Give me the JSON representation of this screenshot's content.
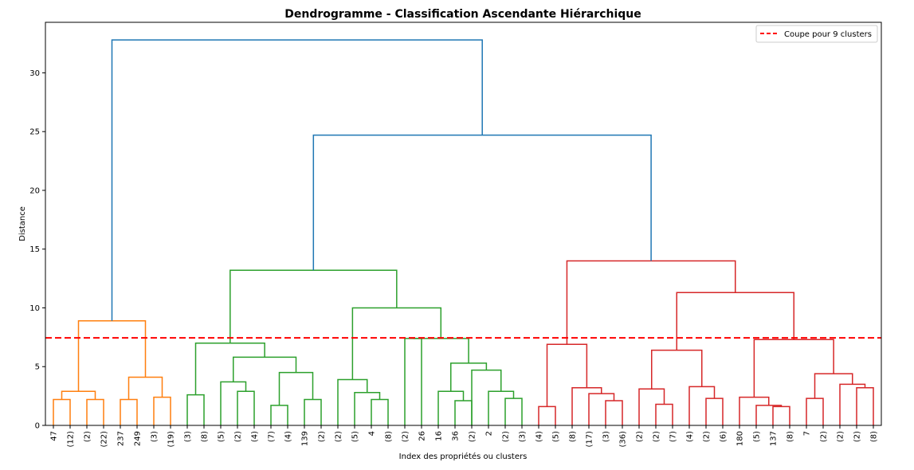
{
  "chart_data": {
    "type": "dendrogram",
    "title": "Dendrogramme - Classification Ascendante Hiérarchique",
    "xlabel": "Index des propriétés ou clusters",
    "ylabel": "Distance",
    "ylim": [
      0,
      34.3
    ],
    "yticks": [
      0,
      5,
      10,
      15,
      20,
      25,
      30
    ],
    "grid": false,
    "legend": {
      "placement": "top-right",
      "entries": [
        {
          "label": "Coupe pour 9 clusters",
          "color": "#ff0000",
          "style": "dashed"
        }
      ]
    },
    "cut_line": {
      "y": 7.45,
      "label": "Coupe pour 9 clusters",
      "color": "#ff0000"
    },
    "leaf_labels": [
      "47",
      "(12)",
      "(2)",
      "(22)",
      "237",
      "249",
      "(3)",
      "(19)",
      "(3)",
      "(8)",
      "(5)",
      "(2)",
      "(4)",
      "(7)",
      "(4)",
      "139",
      "(2)",
      "(2)",
      "(5)",
      "4",
      "(8)",
      "(2)",
      "26",
      "16",
      "36",
      "(2)",
      "2",
      "(2)",
      "(3)",
      "(4)",
      "(5)",
      "(8)",
      "(17)",
      "(3)",
      "(36)",
      "(2)",
      "(2)",
      "(7)",
      "(4)",
      "(2)",
      "(6)",
      "180",
      "(5)",
      "137",
      "(8)",
      "7",
      "(2)",
      "(2)",
      "(2)",
      "(8)"
    ],
    "cluster_colors": {
      "orange": "#ff7f0e",
      "green": "#2ca02c",
      "red": "#d62728",
      "blue": "#1f77b4"
    },
    "merges": [
      {
        "a": {
          "leaf": 0
        },
        "b": {
          "leaf": 1
        },
        "h": 2.2,
        "c": "orange"
      },
      {
        "a": {
          "leaf": 2
        },
        "b": {
          "leaf": 3
        },
        "h": 2.2,
        "c": "orange"
      },
      {
        "a": {
          "node": 0
        },
        "b": {
          "node": 1
        },
        "h": 2.9,
        "c": "orange"
      },
      {
        "a": {
          "leaf": 4
        },
        "b": {
          "leaf": 5
        },
        "h": 2.2,
        "c": "orange"
      },
      {
        "a": {
          "leaf": 6
        },
        "b": {
          "leaf": 7
        },
        "h": 2.4,
        "c": "orange"
      },
      {
        "a": {
          "node": 3
        },
        "b": {
          "node": 4
        },
        "h": 4.1,
        "c": "orange"
      },
      {
        "a": {
          "node": 2
        },
        "b": {
          "node": 5
        },
        "h": 8.9,
        "c": "orange"
      },
      {
        "a": {
          "leaf": 8
        },
        "b": {
          "leaf": 9
        },
        "h": 2.6,
        "c": "green"
      },
      {
        "a": {
          "leaf": 11
        },
        "b": {
          "leaf": 12
        },
        "h": 2.9,
        "c": "green"
      },
      {
        "a": {
          "leaf": 10
        },
        "b": {
          "node": 8
        },
        "h": 3.7,
        "c": "green"
      },
      {
        "a": {
          "leaf": 13
        },
        "b": {
          "leaf": 14
        },
        "h": 1.7,
        "c": "green"
      },
      {
        "a": {
          "leaf": 15
        },
        "b": {
          "leaf": 16
        },
        "h": 2.2,
        "c": "green"
      },
      {
        "a": {
          "node": 10
        },
        "b": {
          "node": 11
        },
        "h": 4.5,
        "c": "green"
      },
      {
        "a": {
          "node": 9
        },
        "b": {
          "node": 12
        },
        "h": 5.8,
        "c": "green"
      },
      {
        "a": {
          "node": 7
        },
        "b": {
          "node": 13
        },
        "h": 7.0,
        "c": "green"
      },
      {
        "a": {
          "leaf": 19
        },
        "b": {
          "leaf": 20
        },
        "h": 2.2,
        "c": "green"
      },
      {
        "a": {
          "leaf": 18
        },
        "b": {
          "node": 15
        },
        "h": 2.8,
        "c": "green"
      },
      {
        "a": {
          "leaf": 17
        },
        "b": {
          "node": 16
        },
        "h": 3.9,
        "c": "green"
      },
      {
        "a": {
          "leaf": 21
        },
        "b": {
          "leaf": 22
        },
        "h": 7.4,
        "c": "green"
      },
      {
        "a": {
          "leaf": 24
        },
        "b": {
          "leaf": 25
        },
        "h": 2.1,
        "c": "green"
      },
      {
        "a": {
          "leaf": 23
        },
        "b": {
          "node": 19
        },
        "h": 2.9,
        "c": "green"
      },
      {
        "a": {
          "leaf": 27
        },
        "b": {
          "leaf": 28
        },
        "h": 2.3,
        "c": "green"
      },
      {
        "a": {
          "leaf": 26
        },
        "b": {
          "node": 21
        },
        "h": 2.9,
        "c": "green"
      },
      {
        "a": {
          "leaf": 25
        },
        "b": {
          "node": 22
        },
        "h": 4.7,
        "c": "green"
      },
      {
        "a": {
          "node": 20
        },
        "b": {
          "node": 23
        },
        "h": 5.3,
        "c": "green"
      },
      {
        "a": {
          "node": 18
        },
        "b": {
          "node": 24
        },
        "h": 7.4,
        "c": "green"
      },
      {
        "a": {
          "node": 17
        },
        "b": {
          "node": 25
        },
        "h": 10.0,
        "c": "green"
      },
      {
        "a": {
          "node": 14
        },
        "b": {
          "node": 26
        },
        "h": 13.2,
        "c": "green"
      },
      {
        "a": {
          "leaf": 29
        },
        "b": {
          "leaf": 30
        },
        "h": 1.6,
        "c": "red"
      },
      {
        "a": {
          "leaf": 33
        },
        "b": {
          "leaf": 34
        },
        "h": 2.1,
        "c": "red"
      },
      {
        "a": {
          "leaf": 32
        },
        "b": {
          "node": 29
        },
        "h": 2.7,
        "c": "red"
      },
      {
        "a": {
          "leaf": 31
        },
        "b": {
          "node": 30
        },
        "h": 3.2,
        "c": "red"
      },
      {
        "a": {
          "node": 28
        },
        "b": {
          "node": 31
        },
        "h": 6.9,
        "c": "red"
      },
      {
        "a": {
          "leaf": 36
        },
        "b": {
          "leaf": 37
        },
        "h": 1.8,
        "c": "red"
      },
      {
        "a": {
          "leaf": 35
        },
        "b": {
          "node": 33
        },
        "h": 3.1,
        "c": "red"
      },
      {
        "a": {
          "leaf": 39
        },
        "b": {
          "leaf": 40
        },
        "h": 2.3,
        "c": "red"
      },
      {
        "a": {
          "leaf": 38
        },
        "b": {
          "node": 35
        },
        "h": 3.3,
        "c": "red"
      },
      {
        "a": {
          "node": 34
        },
        "b": {
          "node": 36
        },
        "h": 6.4,
        "c": "red"
      },
      {
        "a": {
          "leaf": 43
        },
        "b": {
          "leaf": 44
        },
        "h": 1.6,
        "c": "red"
      },
      {
        "a": {
          "leaf": 42
        },
        "b": {
          "node": 38
        },
        "h": 1.7,
        "c": "red"
      },
      {
        "a": {
          "leaf": 41
        },
        "b": {
          "node": 39
        },
        "h": 2.4,
        "c": "red"
      },
      {
        "a": {
          "leaf": 45
        },
        "b": {
          "leaf": 46
        },
        "h": 2.3,
        "c": "red"
      },
      {
        "a": {
          "leaf": 48
        },
        "b": {
          "leaf": 49
        },
        "h": 3.2,
        "c": "red"
      },
      {
        "a": {
          "leaf": 47
        },
        "b": {
          "node": 42
        },
        "h": 3.5,
        "c": "red"
      },
      {
        "a": {
          "node": 41
        },
        "b": {
          "node": 43
        },
        "h": 4.4,
        "c": "red"
      },
      {
        "a": {
          "node": 40
        },
        "b": {
          "node": 44
        },
        "h": 7.3,
        "c": "red"
      },
      {
        "a": {
          "node": 37
        },
        "b": {
          "node": 45
        },
        "h": 11.3,
        "c": "red"
      },
      {
        "a": {
          "node": 32
        },
        "b": {
          "node": 46
        },
        "h": 14.0,
        "c": "red"
      },
      {
        "a": {
          "node": 27
        },
        "b": {
          "node": 47
        },
        "h": 24.7,
        "c": "blue"
      },
      {
        "a": {
          "node": 6
        },
        "b": {
          "node": 48
        },
        "h": 32.8,
        "c": "blue"
      }
    ]
  }
}
